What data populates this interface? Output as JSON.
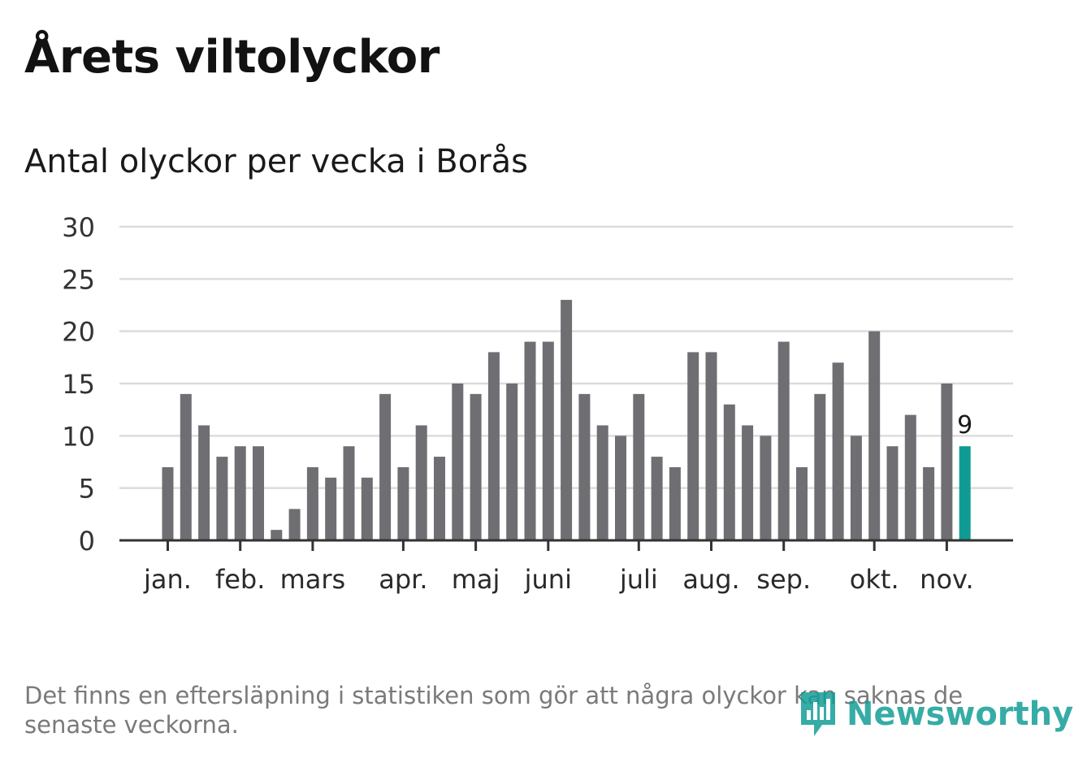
{
  "title": "Årets viltolyckor",
  "subtitle": "Antal olyckor per vecka i Borås",
  "footnote": "Det finns en eftersläpning i statistiken som gör att några olyckor kan saknas de senaste veckorna.",
  "logo": {
    "text": "Newsworthy",
    "icon": "newsworthy-logo-icon"
  },
  "colors": {
    "bar": "#6f6e73",
    "highlight": "#0e9b94",
    "grid": "#dcdcdc",
    "axis": "#333333"
  },
  "chart_data": {
    "type": "bar",
    "ylim": [
      0,
      30
    ],
    "yticks": [
      "0",
      "5",
      "10",
      "15",
      "20",
      "25",
      "30"
    ],
    "ytick_values": [
      0,
      5,
      10,
      15,
      20,
      25,
      30
    ],
    "values": [
      7,
      14,
      11,
      8,
      9,
      9,
      1,
      3,
      7,
      6,
      9,
      6,
      14,
      7,
      11,
      8,
      15,
      14,
      18,
      15,
      19,
      19,
      23,
      14,
      11,
      10,
      14,
      8,
      7,
      18,
      18,
      13,
      11,
      10,
      19,
      7,
      14,
      17,
      10,
      20,
      9,
      12,
      7,
      15,
      9
    ],
    "highlight_index": 44,
    "highlight_label": "9",
    "months": [
      {
        "label": "jan.",
        "bar_index": 0
      },
      {
        "label": "feb.",
        "bar_index": 4
      },
      {
        "label": "mars",
        "bar_index": 8
      },
      {
        "label": "apr.",
        "bar_index": 13
      },
      {
        "label": "maj",
        "bar_index": 17
      },
      {
        "label": "juni",
        "bar_index": 21
      },
      {
        "label": "juli",
        "bar_index": 26
      },
      {
        "label": "aug.",
        "bar_index": 30
      },
      {
        "label": "sep.",
        "bar_index": 34
      },
      {
        "label": "okt.",
        "bar_index": 39
      },
      {
        "label": "nov.",
        "bar_index": 43
      }
    ],
    "grid": true,
    "legend": "none"
  }
}
